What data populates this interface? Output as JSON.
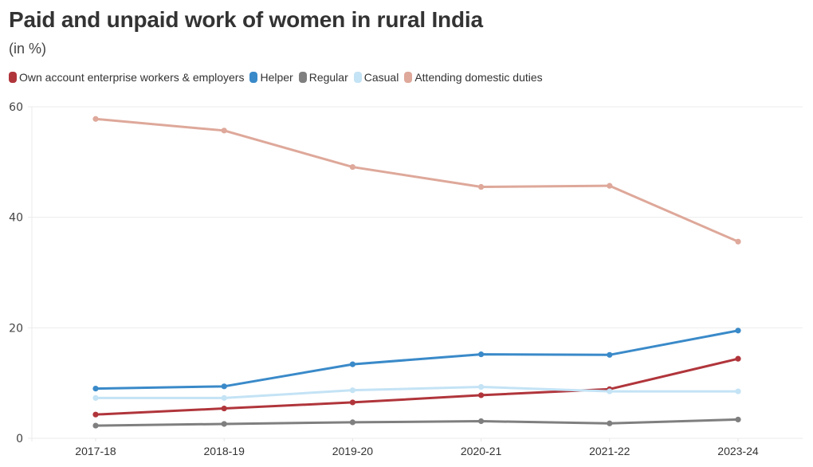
{
  "chart_data": {
    "type": "line",
    "title": "Paid and unpaid work of women in rural India",
    "subtitle": "(in %)",
    "xlabel": "",
    "ylabel": "",
    "x": [
      "2017-18",
      "2018-19",
      "2019-20",
      "2020-21",
      "2021-22",
      "2023-24"
    ],
    "y_ticks": [
      "0",
      "20",
      "40",
      "60"
    ],
    "y_tick_values": [
      0,
      20,
      40,
      60
    ],
    "ylim": [
      0,
      60
    ],
    "grid": true,
    "legend_position": "top-left",
    "series": [
      {
        "name": "Own account enterprise workers & employers",
        "color": "#b0353b",
        "values": [
          4.3,
          5.4,
          6.5,
          7.8,
          8.9,
          14.4
        ]
      },
      {
        "name": "Helper",
        "color": "#3a8ac9",
        "values": [
          9.0,
          9.4,
          13.4,
          15.2,
          15.1,
          19.5
        ]
      },
      {
        "name": "Regular",
        "color": "#7f7f7f",
        "values": [
          2.3,
          2.6,
          2.9,
          3.1,
          2.7,
          3.4
        ]
      },
      {
        "name": "Casual",
        "color": "#c4e3f5",
        "values": [
          7.3,
          7.3,
          8.7,
          9.3,
          8.5,
          8.5
        ]
      },
      {
        "name": "Attending domestic duties",
        "color": "#dea89a",
        "values": [
          57.8,
          55.7,
          49.1,
          45.5,
          45.7,
          35.6
        ]
      }
    ]
  }
}
